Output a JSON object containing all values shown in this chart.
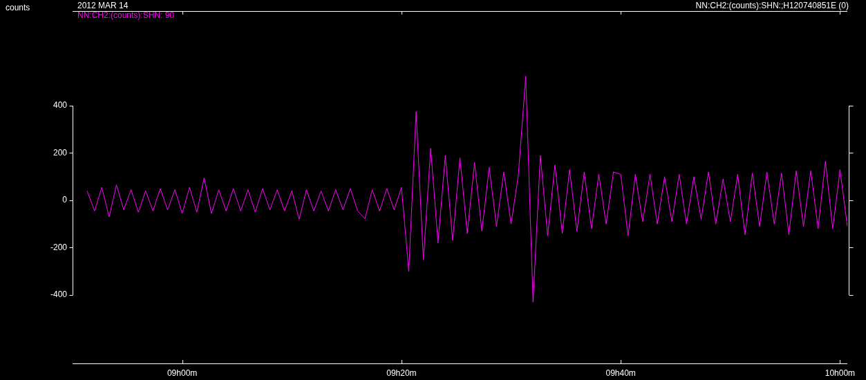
{
  "chart_data": {
    "type": "line",
    "title": "2012 MAR 14",
    "subtitle": "NN:CH2:(counts):SHN:;H120740851E (0)",
    "ylabel": "counts",
    "categories": [
      null,
      null,
      null,
      null,
      null,
      null,
      null,
      null,
      null,
      null,
      null,
      null,
      null,
      null,
      null,
      "09h00m",
      null,
      null,
      null,
      null,
      null,
      null,
      null,
      null,
      null,
      null,
      null,
      null,
      null,
      null,
      null,
      null,
      null,
      null,
      null,
      null,
      null,
      null,
      null,
      null,
      null,
      null,
      null,
      null,
      null,
      "09h20m",
      null,
      null,
      null,
      null,
      null,
      null,
      null,
      null,
      null,
      null,
      null,
      null,
      null,
      null,
      null,
      null,
      null,
      null,
      null,
      null,
      null,
      null,
      null,
      null,
      null,
      null,
      null,
      null,
      null,
      "09h40m",
      null,
      null,
      null,
      null,
      null,
      null,
      null,
      null,
      null,
      null,
      null,
      null,
      null,
      null,
      null,
      null,
      null,
      null,
      null,
      null,
      null,
      null,
      null,
      null,
      null,
      null,
      null,
      null,
      null,
      "10h00m",
      null
    ],
    "series": [
      {
        "name": "NN:CH2:(counts):SHN: 90",
        "color": "#ff00ff",
        "values": [
          null,
          null,
          40,
          -45,
          55,
          -70,
          65,
          -40,
          45,
          -50,
          40,
          -45,
          50,
          -40,
          45,
          -55,
          55,
          -50,
          95,
          -55,
          45,
          -45,
          50,
          -45,
          45,
          -50,
          50,
          -40,
          45,
          -45,
          40,
          -80,
          45,
          -45,
          40,
          -45,
          45,
          -40,
          50,
          -45,
          -78,
          45,
          -45,
          50,
          -40,
          55,
          -300,
          375,
          -250,
          220,
          -180,
          190,
          -170,
          180,
          -140,
          160,
          -130,
          140,
          -110,
          120,
          -100,
          110,
          525,
          -430,
          190,
          -150,
          150,
          -140,
          130,
          -130,
          120,
          -120,
          110,
          -100,
          120,
          110,
          -150,
          110,
          -90,
          110,
          -100,
          100,
          -90,
          110,
          -100,
          100,
          -80,
          120,
          -100,
          90,
          -90,
          110,
          -145,
          115,
          -110,
          120,
          -100,
          115,
          -145,
          125,
          -110,
          125,
          -120,
          165,
          -120,
          130,
          -110
        ]
      }
    ],
    "ylim": [
      -692,
      800
    ],
    "yticks": [
      -400,
      -200,
      0,
      200,
      400
    ],
    "legend": "top left",
    "marker": "none",
    "line_style": "solid"
  }
}
